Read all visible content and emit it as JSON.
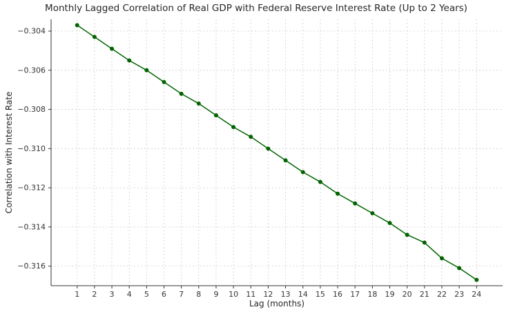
{
  "chart_data": {
    "type": "line",
    "title": "Monthly Lagged Correlation of Real GDP with Federal Reserve Interest Rate (Up to 2 Years)",
    "xlabel": "Lag (months)",
    "ylabel": "Correlation with Interest Rate",
    "x": [
      1,
      2,
      3,
      4,
      5,
      6,
      7,
      8,
      9,
      10,
      11,
      12,
      13,
      14,
      15,
      16,
      17,
      18,
      19,
      20,
      21,
      22,
      23,
      24
    ],
    "y": [
      -0.3037,
      -0.3043,
      -0.3049,
      -0.3055,
      -0.306,
      -0.3066,
      -0.3072,
      -0.3077,
      -0.3083,
      -0.3089,
      -0.3094,
      -0.31,
      -0.3106,
      -0.3112,
      -0.3117,
      -0.3123,
      -0.3128,
      -0.3133,
      -0.3138,
      -0.3144,
      -0.3148,
      -0.3156,
      -0.3161,
      -0.3167
    ],
    "xlim": [
      -0.5,
      25.5
    ],
    "ylim": [
      -0.317,
      -0.3034
    ],
    "xticks": [
      1,
      2,
      3,
      4,
      5,
      6,
      7,
      8,
      9,
      10,
      11,
      12,
      13,
      14,
      15,
      16,
      17,
      18,
      19,
      20,
      21,
      22,
      23,
      24
    ],
    "xtick_labels": [
      "1",
      "2",
      "3",
      "4",
      "5",
      "6",
      "7",
      "8",
      "9",
      "10",
      "11",
      "12",
      "13",
      "14",
      "15",
      "16",
      "17",
      "18",
      "19",
      "20",
      "21",
      "22",
      "23",
      "24"
    ],
    "yticks": [
      -0.304,
      -0.306,
      -0.308,
      -0.31,
      -0.312,
      -0.314,
      -0.316
    ],
    "ytick_labels": [
      "−0.304",
      "−0.306",
      "−0.308",
      "−0.310",
      "−0.312",
      "−0.314",
      "−0.316"
    ],
    "grid": true,
    "legend": "none",
    "line_color": "#006400",
    "marker": "circle",
    "axis_color": "#333333",
    "grid_color": "#cccccc",
    "background_color": "#ffffff"
  }
}
